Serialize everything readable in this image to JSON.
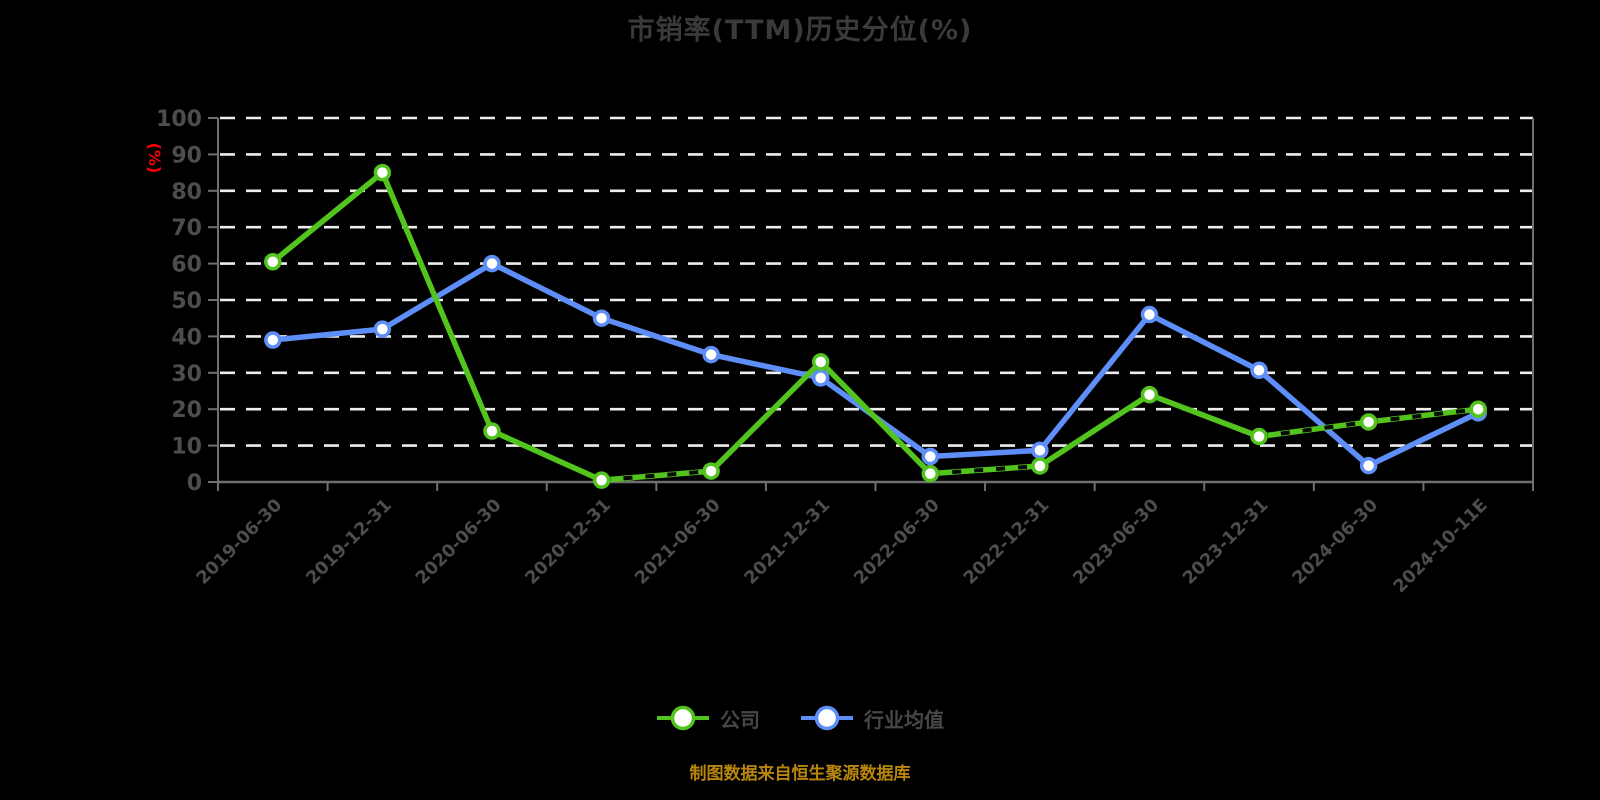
{
  "title": "市销率(TTM)历史分位(%)",
  "y_axis_unit": "(%)",
  "source_note": "制图数据来自恒生聚源数据库",
  "colors": {
    "background": "#000000",
    "title": "#3a3a3a",
    "grid": "#ededed",
    "axis": "#6f6f6f",
    "tick_label": "#4d4d4d",
    "company": "#53c41d",
    "industry": "#5e8ef7",
    "unit_label": "#ff0000",
    "source_note": "#b8860b",
    "marker_fill": "#ffffff",
    "dashed_overlay": "#0a0a0a"
  },
  "legend": {
    "items": [
      {
        "label": "公司",
        "color": "#53c41d"
      },
      {
        "label": "行业均值",
        "color": "#5e8ef7"
      }
    ]
  },
  "chart_data": {
    "type": "line",
    "title": "市销率(TTM)历史分位(%)",
    "ylabel": "(%)",
    "ylim": [
      0,
      100
    ],
    "y_ticks": [
      0,
      10,
      20,
      30,
      40,
      50,
      60,
      70,
      80,
      90,
      100
    ],
    "grid": "horizontal-dashed-white",
    "legend_position": "bottom",
    "categories": [
      "2019-06-30",
      "2019-12-31",
      "2020-06-30",
      "2020-12-31",
      "2021-06-30",
      "2021-12-31",
      "2022-06-30",
      "2022-12-31",
      "2023-06-30",
      "2023-12-31",
      "2024-06-30",
      "2024-10-11E"
    ],
    "series": [
      {
        "name": "公司",
        "color": "#53c41d",
        "values": [
          60.5,
          85,
          14,
          0.5,
          3,
          33,
          2.3,
          4.4,
          24,
          12.5,
          16.5,
          20
        ],
        "dashed_overlay_segments": [
          [
            3,
            4
          ],
          [
            6,
            7
          ],
          [
            9,
            10
          ],
          [
            10,
            11
          ]
        ]
      },
      {
        "name": "行业均值",
        "color": "#5e8ef7",
        "values": [
          39,
          42,
          60,
          45,
          35,
          28.6,
          7,
          8.7,
          46,
          30.7,
          4.5,
          19
        ],
        "dashed_overlay_segments": []
      }
    ]
  }
}
